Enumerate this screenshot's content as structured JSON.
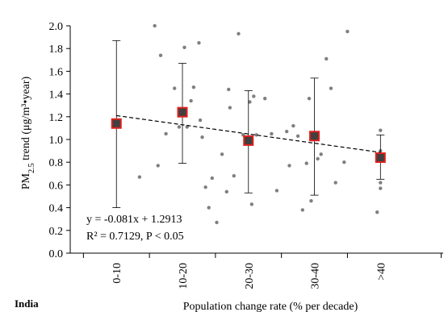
{
  "chart_data": {
    "type": "scatter",
    "panel_label": "India",
    "xlabel": "Population change rate (% per decade)",
    "ylabel_parts": {
      "prefix": "PM",
      "subscript": "2.5",
      "suffix": " trend (μg/m³•year)"
    },
    "categories": [
      "0-10",
      "10-20",
      "20-30",
      "30-40",
      ">40"
    ],
    "category_positions": [
      1,
      2,
      3,
      4,
      5
    ],
    "xlim": [
      0.3,
      5.95
    ],
    "ylim": [
      0.0,
      2.0
    ],
    "yticks": [
      "0.0",
      "0.2",
      "0.4",
      "0.6",
      "0.8",
      "1.0",
      "1.2",
      "1.4",
      "1.6",
      "1.8",
      "2.0"
    ],
    "means": {
      "x": [
        1,
        2,
        3,
        4,
        5
      ],
      "y": [
        1.14,
        1.24,
        0.99,
        1.03,
        0.84
      ],
      "error_low": [
        0.4,
        0.79,
        0.53,
        0.51,
        0.65
      ],
      "error_high": [
        1.87,
        1.67,
        1.43,
        1.54,
        1.04
      ]
    },
    "points": {
      "x": [
        1.35,
        1.58,
        1.63,
        1.67,
        1.75,
        1.88,
        1.95,
        2.03,
        2.07,
        2.13,
        2.17,
        2.25,
        2.27,
        2.3,
        2.35,
        2.4,
        2.45,
        2.52,
        2.6,
        2.67,
        2.7,
        2.72,
        2.78,
        2.85,
        2.92,
        3.02,
        3.05,
        3.08,
        3.12,
        3.25,
        3.35,
        3.43,
        3.58,
        3.62,
        3.68,
        3.75,
        3.82,
        3.88,
        3.92,
        3.95,
        4.05,
        4.1,
        4.18,
        4.25,
        4.32,
        4.45,
        4.5,
        4.95,
        5.0,
        5.0,
        5.0,
        5.0
      ],
      "y": [
        0.67,
        2.0,
        0.77,
        1.74,
        1.05,
        1.45,
        1.11,
        1.81,
        1.11,
        1.34,
        1.46,
        1.85,
        1.17,
        1.02,
        0.58,
        0.4,
        0.66,
        0.27,
        0.87,
        0.54,
        1.44,
        1.28,
        0.68,
        1.93,
        1.04,
        1.33,
        0.43,
        1.38,
        1.04,
        1.36,
        1.05,
        0.55,
        1.07,
        0.77,
        1.12,
        1.03,
        0.38,
        0.79,
        1.36,
        0.46,
        0.83,
        0.87,
        1.71,
        1.45,
        0.62,
        0.8,
        1.95,
        0.36,
        1.08,
        0.9,
        0.62,
        0.57
      ]
    },
    "trendline": {
      "slope": -0.081,
      "intercept": 1.2913,
      "x_range": [
        1,
        5
      ]
    },
    "annotation_line1": "y = -0.081x + 1.2913",
    "annotation_line2": "R² = 0.7129, P < 0.05",
    "grid": false,
    "legend": "none",
    "colors": {
      "marker_fill": "#404040",
      "marker_edge": "#e0201c",
      "point": "#7f7f7f",
      "axis": "#000000",
      "trend": "#000000"
    }
  }
}
